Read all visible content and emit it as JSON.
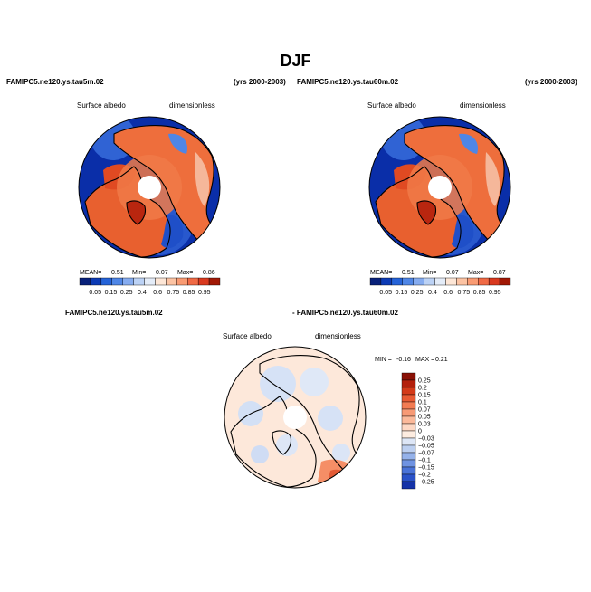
{
  "figure_title": "DJF",
  "chart_data": [
    {
      "type": "heatmap",
      "title": "FAMIPC5.ne120.ys.tau5m.02",
      "right_title": "(yrs 2000-2003)",
      "variable": "Surface albedo",
      "units": "dimensionless",
      "projection": "north-polar-stereographic",
      "stats": {
        "mean_label": "MEAN=",
        "mean": "0.51",
        "min_label": "Min=",
        "min": "0.07",
        "max_label": "Max=",
        "max": "0.86"
      },
      "colorbar": {
        "orientation": "horizontal",
        "levels": [
          "0.05",
          "0.15",
          "0.25",
          "0.4",
          "0.6",
          "0.75",
          "0.85",
          "0.95"
        ],
        "colors": [
          "#08217a",
          "#0c3bb5",
          "#2563d8",
          "#4f86e6",
          "#86acf0",
          "#bcd2f5",
          "#e4ecf8",
          "#fde6d6",
          "#fcc3a3",
          "#f99b73",
          "#f06a45",
          "#d9391f",
          "#a11805"
        ]
      }
    },
    {
      "type": "heatmap",
      "title": "FAMIPC5.ne120.ys.tau60m.02",
      "right_title": "(yrs 2000-2003)",
      "variable": "Surface albedo",
      "units": "dimensionless",
      "projection": "north-polar-stereographic",
      "stats": {
        "mean_label": "MEAN=",
        "mean": "0.51",
        "min_label": "Min=",
        "min": "0.07",
        "max_label": "Max=",
        "max": "0.87"
      },
      "colorbar": {
        "orientation": "horizontal",
        "levels": [
          "0.05",
          "0.15",
          "0.25",
          "0.4",
          "0.6",
          "0.75",
          "0.85",
          "0.95"
        ],
        "colors": [
          "#08217a",
          "#0c3bb5",
          "#2563d8",
          "#4f86e6",
          "#86acf0",
          "#bcd2f5",
          "#e4ecf8",
          "#fde6d6",
          "#fcc3a3",
          "#f99b73",
          "#f06a45",
          "#d9391f",
          "#a11805"
        ]
      }
    },
    {
      "type": "heatmap",
      "title_left": "FAMIPC5.ne120.ys.tau5m.02",
      "title_right": "- FAMIPC5.ne120.ys.tau60m.02",
      "variable": "Surface albedo",
      "units": "dimensionless",
      "projection": "north-polar-stereographic",
      "stats": {
        "min_label": "MIN =",
        "min": "-0.16",
        "max_label": "MAX =",
        "max": "0.21"
      },
      "colorbar": {
        "orientation": "vertical",
        "levels": [
          "0.25",
          "0.2",
          "0.15",
          "0.1",
          "0.07",
          "0.05",
          "0.03",
          "0",
          "−0.03",
          "−0.05",
          "−0.07",
          "−0.1",
          "−0.15",
          "−0.2",
          "−0.25"
        ],
        "colors": [
          "#8a1106",
          "#b3200c",
          "#d33a19",
          "#e85a33",
          "#f27b52",
          "#f79a75",
          "#fbb99a",
          "#fdd8c4",
          "#fdece0",
          "#dde6f6",
          "#bccff0",
          "#95b2ea",
          "#6f93e2",
          "#4a73d8",
          "#2a52c8",
          "#1533a8"
        ]
      }
    }
  ]
}
